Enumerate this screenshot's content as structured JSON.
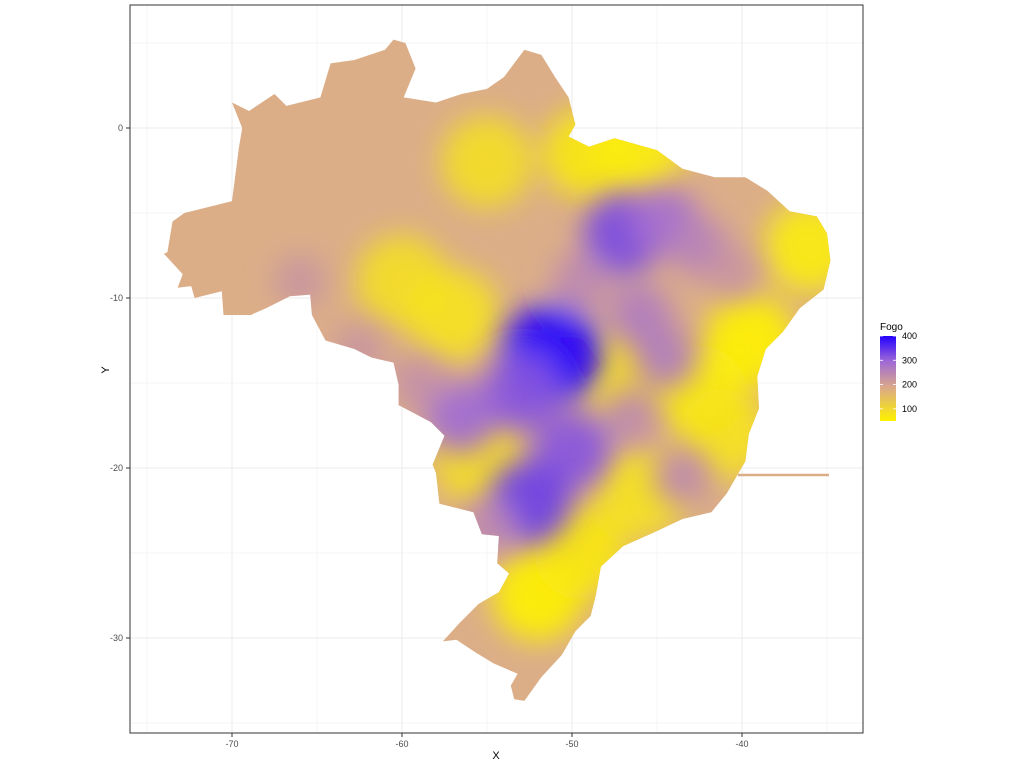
{
  "chart_data": {
    "type": "heatmap",
    "title": "",
    "xlabel": "X",
    "ylabel": "Y",
    "xlim": [
      -76,
      -33
    ],
    "ylim": [
      -35.8,
      7.2
    ],
    "x_ticks": [
      -70,
      -60,
      -50,
      -40
    ],
    "y_ticks": [
      0,
      -10,
      -20,
      -30
    ],
    "x_tick_labels": [
      "-70",
      "-60",
      "-50",
      "-40"
    ],
    "y_tick_labels": [
      "0",
      "-10",
      "-20",
      "-30"
    ],
    "grid": true,
    "legend": {
      "title": "Fogo",
      "position": "right",
      "range": [
        50,
        400
      ],
      "breaks": [
        400,
        300,
        200,
        100
      ],
      "break_labels": [
        "400",
        "300",
        "200",
        "100"
      ],
      "colors": [
        "#fff200",
        "#d9a88a",
        "#a06ad6",
        "#2200ff"
      ]
    },
    "map_fill_base": "#dcae88",
    "hotspots": [
      {
        "lon": -51.2,
        "lat": -13.3,
        "value": 400
      },
      {
        "lon": -47.0,
        "lat": -6.3,
        "value": 330
      },
      {
        "lon": -44.5,
        "lat": -5.5,
        "value": 290
      },
      {
        "lon": -42.5,
        "lat": -7.0,
        "value": 260
      },
      {
        "lon": -53.0,
        "lat": -15.5,
        "value": 320
      },
      {
        "lon": -56.5,
        "lat": -17.0,
        "value": 300
      },
      {
        "lon": -50.0,
        "lat": -19.0,
        "value": 320
      },
      {
        "lon": -52.5,
        "lat": -22.0,
        "value": 340
      },
      {
        "lon": -46.0,
        "lat": -11.0,
        "value": 270
      },
      {
        "lon": -44.5,
        "lat": -13.5,
        "value": 270
      },
      {
        "lon": -43.5,
        "lat": -20.5,
        "value": 250
      },
      {
        "lon": -46.5,
        "lat": -17.0,
        "value": 250
      },
      {
        "lon": -40.5,
        "lat": -8.5,
        "value": 230
      },
      {
        "lon": -62.5,
        "lat": -13.0,
        "value": 230
      },
      {
        "lon": -66.0,
        "lat": -9.0,
        "value": 230
      },
      {
        "lon": -55.0,
        "lat": -23.5,
        "value": 250
      },
      {
        "lon": -59.0,
        "lat": -15.0,
        "value": 240
      },
      {
        "lon": -49.5,
        "lat": -9.0,
        "value": 250
      }
    ],
    "coolspots": [
      {
        "lon": -39.5,
        "lat": -12.5,
        "value": 50
      },
      {
        "lon": -42.5,
        "lat": -15.5,
        "value": 60
      },
      {
        "lon": -49.0,
        "lat": -1.5,
        "value": 70
      },
      {
        "lon": -46.0,
        "lat": -1.0,
        "value": 60
      },
      {
        "lon": -52.0,
        "lat": -27.5,
        "value": 50
      },
      {
        "lon": -49.5,
        "lat": -25.0,
        "value": 70
      },
      {
        "lon": -36.0,
        "lat": -7.0,
        "value": 60
      },
      {
        "lon": -55.0,
        "lat": -2.0,
        "value": 90
      },
      {
        "lon": -60.0,
        "lat": -9.0,
        "value": 90
      },
      {
        "lon": -57.0,
        "lat": -11.0,
        "value": 80
      },
      {
        "lon": -46.0,
        "lat": -21.5,
        "value": 80
      },
      {
        "lon": -47.0,
        "lat": -14.5,
        "value": 90
      },
      {
        "lon": -55.5,
        "lat": -19.5,
        "value": 90
      },
      {
        "lon": -41.0,
        "lat": -18.0,
        "value": 80
      }
    ]
  }
}
